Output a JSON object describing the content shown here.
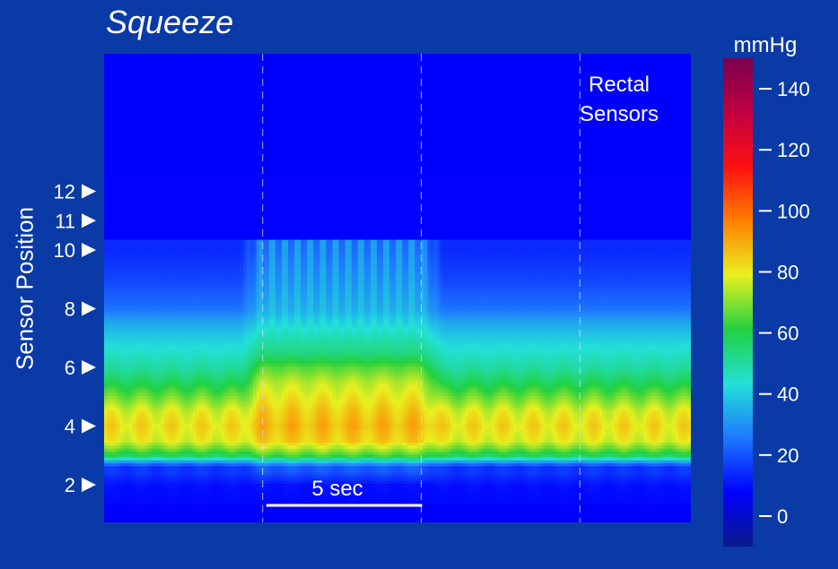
{
  "chart_data": {
    "type": "heatmap",
    "title": "Squeeze",
    "ylabel": "Sensor Position",
    "colorbar": {
      "unit": "mmHg",
      "range": [
        -10,
        150
      ],
      "ticks": [
        "0",
        "20",
        "40",
        "60",
        "80",
        "100",
        "120",
        "140"
      ],
      "colors": [
        "#0a1a8a",
        "#0000ff",
        "#1e78ff",
        "#22e0d8",
        "#22d040",
        "#e8f020",
        "#ff8000",
        "#ff1010",
        "#c00040",
        "#7a0050"
      ]
    },
    "sensor_markers": [
      {
        "label": "12",
        "position": 12
      },
      {
        "label": "11",
        "position": 11
      },
      {
        "label": "10",
        "position": 10
      },
      {
        "label": "8",
        "position": 8
      },
      {
        "label": "6",
        "position": 6
      },
      {
        "label": "4",
        "position": 4
      },
      {
        "label": "2",
        "position": 2
      }
    ],
    "rectal_region": {
      "label_line1": "Rectal",
      "label_line2": "Sensors",
      "pressure_mmHg": 8
    },
    "scale_bar": {
      "label": "5 sec",
      "seconds": 5
    },
    "time_range_sec": [
      0,
      18.5
    ],
    "event_markers_sec": [
      5,
      10,
      15
    ],
    "squeeze_interval_sec": [
      5,
      10
    ],
    "pressure_profile": {
      "positions": [
        1.0,
        2.0,
        2.6,
        3.0,
        3.5,
        4.0,
        4.5,
        5.0,
        5.5,
        6.0,
        6.5,
        7.0,
        7.5,
        8.0,
        9.0,
        10.0
      ],
      "rest_mmHg": [
        8,
        10,
        18,
        58,
        78,
        82,
        78,
        68,
        58,
        50,
        45,
        40,
        34,
        25,
        18,
        14
      ],
      "squeeze_mmHg": [
        8,
        10,
        24,
        64,
        84,
        88,
        85,
        80,
        75,
        66,
        54,
        48,
        42,
        36,
        32,
        28
      ]
    }
  }
}
